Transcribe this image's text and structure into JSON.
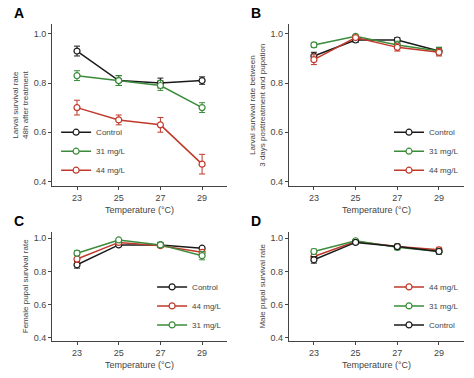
{
  "chart_data": [
    {
      "type": "line",
      "title": "A",
      "xlabel": "Temperature (°C)",
      "ylabel": "Larval survival rate\n48h after treatment",
      "x": [
        23,
        25,
        27,
        29
      ],
      "xlim": [
        21.8,
        30.2
      ],
      "xticks": [
        23,
        25,
        27,
        29
      ],
      "ylim": [
        0.38,
        1.04
      ],
      "yticks": [
        0.4,
        0.6,
        0.8,
        {
          "value": 1.0,
          "label": "1.0"
        }
      ],
      "grid": false,
      "legend": "lower left",
      "series": [
        {
          "name": "Control",
          "color": "#1a1a1a",
          "marker": "circle",
          "values": [
            0.93,
            0.81,
            0.8,
            0.81
          ],
          "yerr": [
            0.02,
            0.02,
            0.02,
            0.015
          ]
        },
        {
          "name": "31 mg/L",
          "color": "#3a8c3a",
          "marker": "circle",
          "values": [
            0.83,
            0.81,
            0.79,
            0.7
          ],
          "yerr": [
            0.02,
            0.02,
            0.02,
            0.02
          ]
        },
        {
          "name": "44 mg/L",
          "color": "#c0392b",
          "marker": "circle",
          "values": [
            0.7,
            0.65,
            0.63,
            0.47
          ],
          "yerr": [
            0.03,
            0.02,
            0.03,
            0.04
          ]
        }
      ]
    },
    {
      "type": "line",
      "title": "B",
      "xlabel": "Temperature (°C)",
      "ylabel": "Larval survival rate between\n3 days posttreatment and pupation",
      "x": [
        23,
        25,
        27,
        29
      ],
      "xlim": [
        21.8,
        30.2
      ],
      "xticks": [
        23,
        25,
        27,
        29
      ],
      "ylim": [
        0.38,
        1.04
      ],
      "yticks": [
        0.4,
        0.6,
        0.8,
        {
          "value": 1.0,
          "label": "1.0"
        }
      ],
      "grid": false,
      "legend": "lower right",
      "series": [
        {
          "name": "Control",
          "color": "#1a1a1a",
          "marker": "circle",
          "values": [
            0.91,
            0.975,
            0.975,
            0.93
          ],
          "yerr": [
            0.015,
            0.01,
            0.01,
            0.015
          ]
        },
        {
          "name": "31 mg/L",
          "color": "#3a8c3a",
          "marker": "circle",
          "values": [
            0.955,
            0.99,
            0.955,
            0.93
          ],
          "yerr": [
            0.01,
            0.005,
            0.015,
            0.015
          ]
        },
        {
          "name": "44 mg/L",
          "color": "#c0392b",
          "marker": "circle",
          "values": [
            0.895,
            0.985,
            0.945,
            0.925
          ],
          "yerr": [
            0.02,
            0.008,
            0.015,
            0.015
          ]
        }
      ]
    },
    {
      "type": "line",
      "title": "C",
      "xlabel": "Temperature (°C)",
      "ylabel": "Female pupal survival rate",
      "x": [
        23,
        25,
        27,
        29
      ],
      "xlim": [
        21.8,
        30.2
      ],
      "xticks": [
        23,
        25,
        27,
        29
      ],
      "ylim": [
        0.38,
        1.04
      ],
      "yticks": [
        0.4,
        0.6,
        0.8,
        {
          "value": 1.0,
          "label": "1.0"
        }
      ],
      "grid": false,
      "legend": "lower right",
      "series": [
        {
          "name": "Control",
          "color": "#1a1a1a",
          "marker": "circle",
          "values": [
            0.84,
            0.96,
            0.96,
            0.94
          ],
          "yerr": [
            0.02,
            0.01,
            0.015,
            0.01
          ]
        },
        {
          "name": "44 mg/L",
          "color": "#c0392b",
          "marker": "circle",
          "values": [
            0.875,
            0.975,
            0.955,
            0.915
          ],
          "yerr": [
            0.02,
            0.008,
            0.01,
            0.015
          ]
        },
        {
          "name": "31 mg/L",
          "color": "#3a8c3a",
          "marker": "circle",
          "values": [
            0.91,
            0.99,
            0.96,
            0.895
          ],
          "yerr": [
            0.015,
            0.005,
            0.015,
            0.025
          ]
        }
      ]
    },
    {
      "type": "line",
      "title": "D",
      "xlabel": "Temperature (°C)",
      "ylabel": "Male pupal survival rate",
      "x": [
        23,
        25,
        27,
        29
      ],
      "xlim": [
        21.8,
        30.2
      ],
      "xticks": [
        23,
        25,
        27,
        29
      ],
      "ylim": [
        0.38,
        1.04
      ],
      "yticks": [
        0.4,
        0.6,
        0.8,
        {
          "value": 1.0,
          "label": "1.0"
        }
      ],
      "grid": false,
      "legend": "lower right",
      "series": [
        {
          "name": "44 mg/L",
          "color": "#c0392b",
          "marker": "circle",
          "values": [
            0.89,
            0.98,
            0.95,
            0.93
          ],
          "yerr": [
            0.015,
            0.008,
            0.01,
            0.015
          ]
        },
        {
          "name": "31 mg/L",
          "color": "#3a8c3a",
          "marker": "circle",
          "values": [
            0.92,
            0.985,
            0.945,
            0.92
          ],
          "yerr": [
            0.015,
            0.008,
            0.015,
            0.015
          ]
        },
        {
          "name": "Control",
          "color": "#1a1a1a",
          "marker": "circle",
          "values": [
            0.87,
            0.975,
            0.95,
            0.92
          ],
          "yerr": [
            0.02,
            0.01,
            0.015,
            0.015
          ]
        }
      ]
    }
  ]
}
